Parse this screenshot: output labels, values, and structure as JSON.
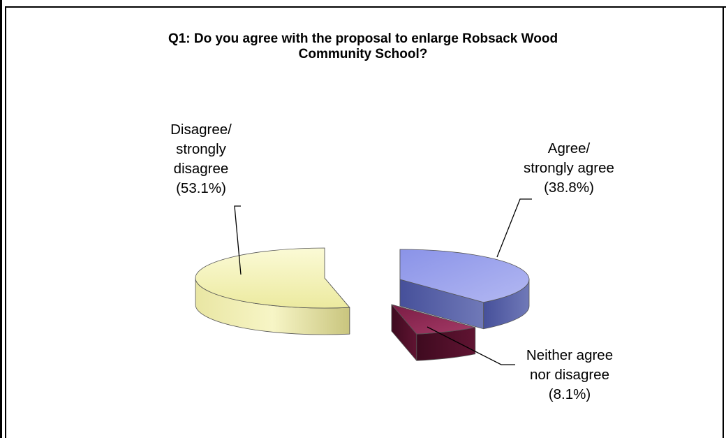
{
  "chart_data": {
    "type": "pie",
    "title": "Q1: Do you agree with the proposal to enlarge Robsack Wood Community School?",
    "title_lines": [
      "Q1: Do you agree with the proposal to enlarge Robsack Wood",
      "Community School?"
    ],
    "style": "3d-exploded",
    "legend": "none",
    "slices": [
      {
        "name": "Agree/ strongly agree",
        "value": 38.8,
        "label_lines": [
          "Agree/",
          "strongly agree",
          "(38.8%)"
        ],
        "color": "#9aa3ec",
        "side_color": "#5c65a6"
      },
      {
        "name": "Neither agree nor disagree",
        "value": 8.1,
        "label_lines": [
          "Neither agree",
          "nor disagree",
          "(8.1%)"
        ],
        "color": "#8c2a52",
        "side_color": "#4e1029"
      },
      {
        "name": "Disagree/ strongly disagree",
        "value": 53.1,
        "label_lines": [
          "Disagree/",
          "strongly",
          "disagree",
          "(53.1%)"
        ],
        "color": "#f4f3c0",
        "side_color": "#cfcc86"
      }
    ]
  }
}
